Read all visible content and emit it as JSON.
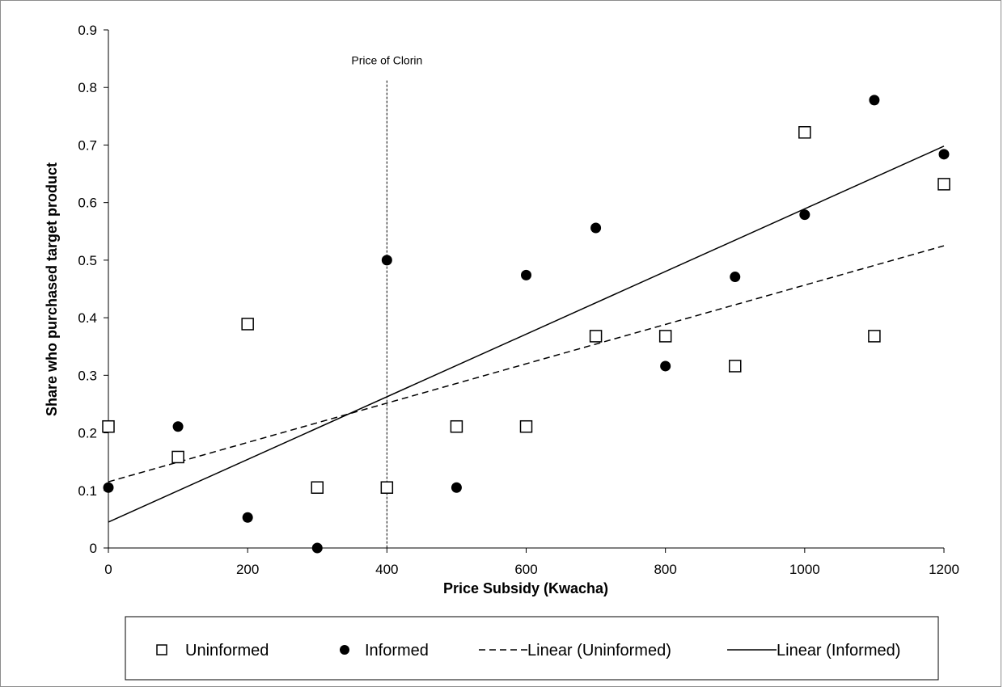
{
  "chart_data": {
    "type": "scatter",
    "title": "",
    "xlabel": "Price Subsidy (Kwacha)",
    "ylabel": "Share who purchased target product",
    "xlim": [
      0,
      1200
    ],
    "ylim": [
      0,
      0.9
    ],
    "x_ticks": [
      0,
      200,
      400,
      600,
      800,
      1000,
      1200
    ],
    "x_tick_labels": [
      "0",
      "200",
      "400",
      "600",
      "800",
      "1000",
      "1200"
    ],
    "y_ticks": [
      0,
      0.1,
      0.2,
      0.3,
      0.4,
      0.5,
      0.6,
      0.7,
      0.8,
      0.9
    ],
    "y_tick_labels": [
      "0",
      "0.1",
      "0.2",
      "0.3",
      "0.4",
      "0.5",
      "0.6",
      "0.7",
      "0.8",
      "0.9"
    ],
    "grid": false,
    "legend_position": "bottom",
    "series": [
      {
        "name": "Uninformed",
        "marker": "open-square",
        "points": [
          [
            0,
            0.211
          ],
          [
            100,
            0.158
          ],
          [
            200,
            0.389
          ],
          [
            300,
            0.105
          ],
          [
            400,
            0.105
          ],
          [
            500,
            0.211
          ],
          [
            600,
            0.211
          ],
          [
            700,
            0.368
          ],
          [
            800,
            0.368
          ],
          [
            900,
            0.316
          ],
          [
            1000,
            0.722
          ],
          [
            1100,
            0.368
          ],
          [
            1200,
            0.632
          ]
        ]
      },
      {
        "name": "Informed",
        "marker": "filled-circle",
        "points": [
          [
            0,
            0.105
          ],
          [
            100,
            0.211
          ],
          [
            200,
            0.053
          ],
          [
            300,
            0.0
          ],
          [
            400,
            0.5
          ],
          [
            500,
            0.105
          ],
          [
            600,
            0.474
          ],
          [
            700,
            0.556
          ],
          [
            800,
            0.316
          ],
          [
            900,
            0.471
          ],
          [
            1000,
            0.579
          ],
          [
            1100,
            0.778
          ],
          [
            1200,
            0.684
          ]
        ]
      }
    ],
    "trendlines": [
      {
        "name": "Linear (Uninformed)",
        "style": "dashed",
        "x": [
          0,
          1200
        ],
        "y": [
          0.115,
          0.525
        ]
      },
      {
        "name": "Linear (Informed)",
        "style": "solid",
        "x": [
          0,
          1200
        ],
        "y": [
          0.045,
          0.698
        ]
      }
    ],
    "annotations": [
      {
        "text": "Price of Clorin",
        "x": 400,
        "style": "dotted-vertical-line",
        "y_top": 0.812
      }
    ],
    "legend": {
      "entries": [
        "Uninformed",
        "Informed",
        "Linear (Uninformed)",
        "Linear (Informed)"
      ]
    }
  }
}
